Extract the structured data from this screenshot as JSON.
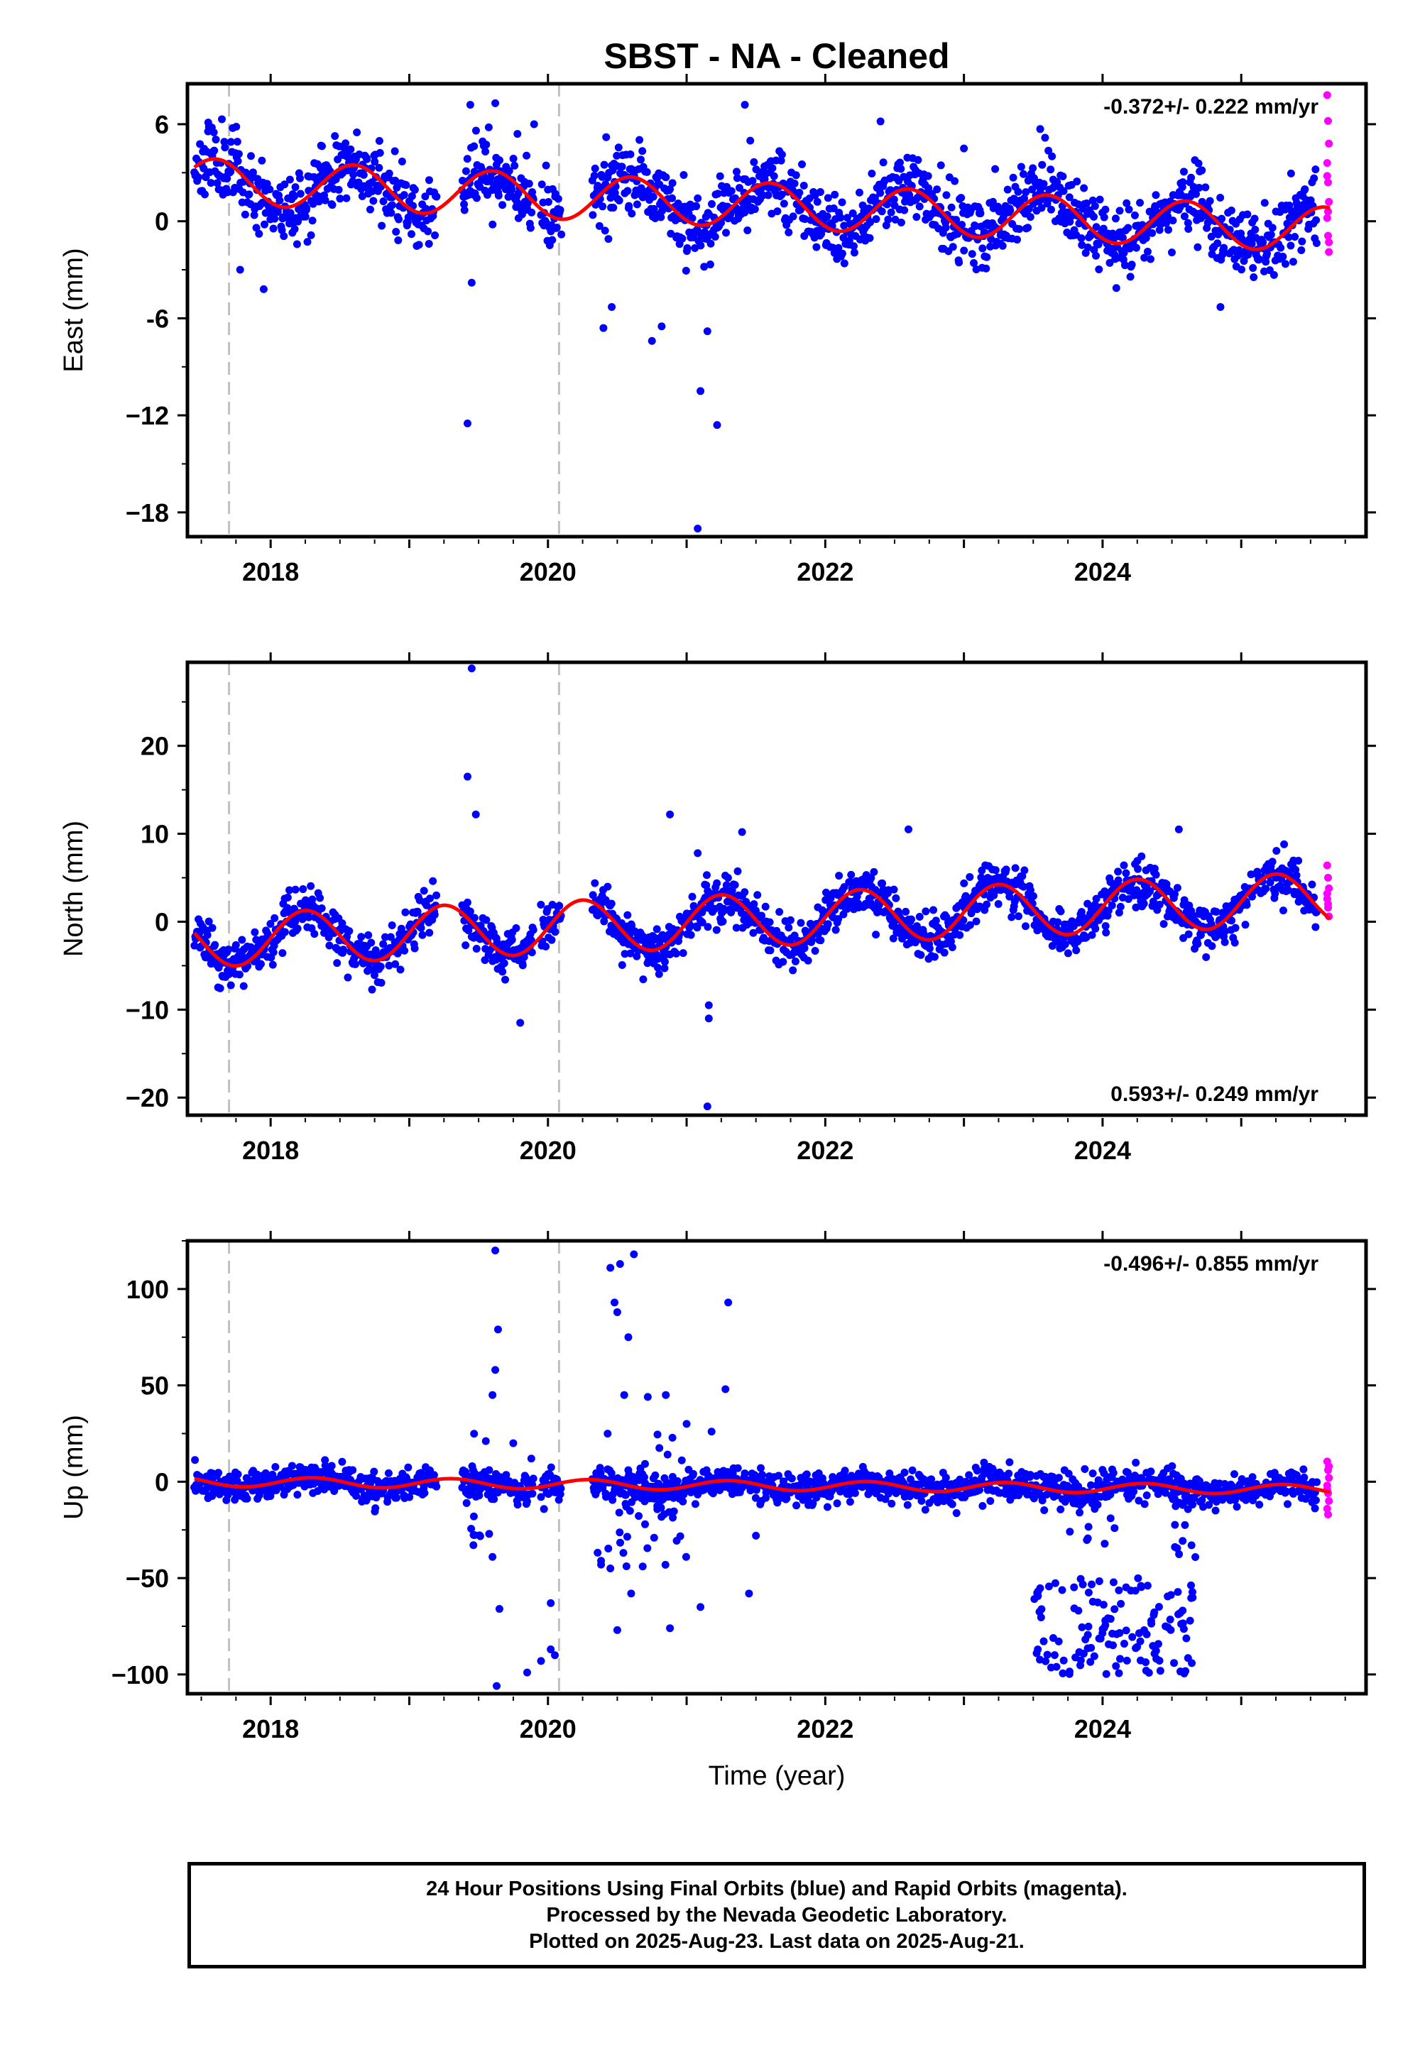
{
  "chart_data": {
    "type": "scatter",
    "title": "SBST  - NA - Cleaned",
    "xlabel": "Time (year)",
    "x_ticks": [
      "2018",
      "2020",
      "2022",
      "2024"
    ],
    "xlim": [
      2017.4,
      2025.9
    ],
    "vertical_reference_lines": [
      2017.7,
      2020.08
    ],
    "colors": {
      "final_orbits": "#0000ff",
      "rapid_orbits": "#ff00ff",
      "fit": "#ff0000",
      "reference_lines": "#c0c0c0"
    },
    "panels": [
      {
        "id": "east",
        "ylabel": "East (mm)",
        "ylim": [
          -19.5,
          8.5
        ],
        "yticks": [
          6,
          0,
          -6,
          -12,
          -18
        ],
        "ytick_labels": [
          "6",
          "0",
          "-6",
          "−12",
          "−18"
        ],
        "rate": "-0.372+/- 0.222 mm/yr",
        "rate_position": "top-right",
        "fit": {
          "offset": 1.0,
          "slope": -0.372,
          "ref_year": 2021.5,
          "amplitude": 1.4,
          "phase": 2018.6
        },
        "seed": 11,
        "spread": 1.1,
        "outliers": [
          {
            "x": 2017.55,
            "y": 6.1
          },
          {
            "x": 2017.78,
            "y": -3.0
          },
          {
            "x": 2017.95,
            "y": -4.2
          },
          {
            "x": 2019.42,
            "y": -12.5
          },
          {
            "x": 2019.45,
            "y": -3.8
          },
          {
            "x": 2019.44,
            "y": 7.2
          },
          {
            "x": 2019.62,
            "y": 7.3
          },
          {
            "x": 2019.78,
            "y": 5.4
          },
          {
            "x": 2019.9,
            "y": 6.0
          },
          {
            "x": 2020.42,
            "y": 5.2
          },
          {
            "x": 2020.4,
            "y": -6.6
          },
          {
            "x": 2020.46,
            "y": -5.3
          },
          {
            "x": 2020.75,
            "y": -7.4
          },
          {
            "x": 2020.82,
            "y": -6.5
          },
          {
            "x": 2021.1,
            "y": -10.5
          },
          {
            "x": 2021.22,
            "y": -12.6
          },
          {
            "x": 2021.08,
            "y": -19.0
          },
          {
            "x": 2021.15,
            "y": -6.8
          },
          {
            "x": 2021.42,
            "y": 7.2
          },
          {
            "x": 2023.0,
            "y": 4.5
          },
          {
            "x": 2023.55,
            "y": 5.7
          },
          {
            "x": 2024.85,
            "y": -5.3
          }
        ],
        "rapid_y": [
          7.8,
          6.2,
          4.8,
          3.6,
          2.4,
          1.2,
          0.2,
          -0.9,
          -1.9,
          2.8,
          0.6,
          -1.3
        ]
      },
      {
        "id": "north",
        "ylabel": "North (mm)",
        "ylim": [
          -22,
          29.5
        ],
        "yticks": [
          20,
          10,
          0,
          -10,
          -20
        ],
        "ytick_labels": [
          "20",
          "10",
          "0",
          "−10",
          "−20"
        ],
        "rate": "0.593+/- 0.249 mm/yr",
        "rate_position": "bottom-right",
        "fit": {
          "offset": 0.2,
          "slope": 0.593,
          "ref_year": 2021.5,
          "amplitude": 3.0,
          "phase": 2018.25
        },
        "seed": 23,
        "spread": 1.3,
        "outliers": [
          {
            "x": 2019.45,
            "y": 28.8
          },
          {
            "x": 2019.42,
            "y": 16.5
          },
          {
            "x": 2019.48,
            "y": 12.2
          },
          {
            "x": 2019.8,
            "y": -11.5
          },
          {
            "x": 2020.88,
            "y": 12.2
          },
          {
            "x": 2021.08,
            "y": 7.8
          },
          {
            "x": 2021.16,
            "y": -9.5
          },
          {
            "x": 2021.16,
            "y": -11.0
          },
          {
            "x": 2021.15,
            "y": -21.0
          },
          {
            "x": 2021.4,
            "y": 10.2
          },
          {
            "x": 2022.6,
            "y": 10.5
          },
          {
            "x": 2024.55,
            "y": 10.5
          }
        ],
        "rapid_y": [
          6.4,
          5.0,
          3.8,
          2.6,
          1.6,
          0.6,
          3.2,
          2.0
        ]
      },
      {
        "id": "up",
        "ylabel": "Up (mm)",
        "ylim": [
          -110,
          125
        ],
        "yticks": [
          100,
          50,
          0,
          -50,
          -100
        ],
        "ytick_labels": [
          "100",
          "50",
          "0",
          "−50",
          "−100"
        ],
        "rate": "-0.496+/- 0.855 mm/yr",
        "rate_position": "top-right",
        "fit": {
          "offset": -2.0,
          "slope": -0.496,
          "ref_year": 2021.5,
          "amplitude": 2.5,
          "phase": 2018.3
        },
        "seed": 37,
        "spread": 4.0,
        "outliers": [
          {
            "x": 2019.62,
            "y": 120
          },
          {
            "x": 2019.64,
            "y": 79
          },
          {
            "x": 2019.62,
            "y": 58
          },
          {
            "x": 2019.6,
            "y": 45
          },
          {
            "x": 2019.6,
            "y": -39
          },
          {
            "x": 2019.65,
            "y": -66
          },
          {
            "x": 2019.63,
            "y": -106
          },
          {
            "x": 2019.85,
            "y": -99
          },
          {
            "x": 2019.95,
            "y": -93
          },
          {
            "x": 2020.02,
            "y": -87
          },
          {
            "x": 2020.05,
            "y": -90
          },
          {
            "x": 2020.02,
            "y": -63
          },
          {
            "x": 2020.45,
            "y": 111
          },
          {
            "x": 2020.52,
            "y": 113
          },
          {
            "x": 2020.62,
            "y": 118
          },
          {
            "x": 2020.48,
            "y": 93
          },
          {
            "x": 2020.5,
            "y": 88
          },
          {
            "x": 2020.58,
            "y": 75
          },
          {
            "x": 2020.55,
            "y": 45
          },
          {
            "x": 2020.72,
            "y": 44
          },
          {
            "x": 2020.85,
            "y": 45
          },
          {
            "x": 2020.45,
            "y": -45
          },
          {
            "x": 2020.5,
            "y": -77
          },
          {
            "x": 2020.6,
            "y": -58
          },
          {
            "x": 2020.88,
            "y": -76
          },
          {
            "x": 2021.1,
            "y": -65
          },
          {
            "x": 2021.18,
            "y": 26
          },
          {
            "x": 2021.3,
            "y": 93
          },
          {
            "x": 2021.28,
            "y": 48
          },
          {
            "x": 2021.45,
            "y": -58
          },
          {
            "x": 2021.5,
            "y": -28
          },
          {
            "x": 2019.75,
            "y": 20
          },
          {
            "x": 2019.88,
            "y": 12
          },
          {
            "x": 2021.0,
            "y": 30
          }
        ],
        "clusters": [
          {
            "x0": 2023.5,
            "x1": 2024.65,
            "y0": -100,
            "y1": -50,
            "count": 130,
            "seed": 51
          },
          {
            "x0": 2023.75,
            "x1": 2024.1,
            "y0": -40,
            "y1": -12,
            "count": 8,
            "seed": 52
          },
          {
            "x0": 2024.5,
            "x1": 2024.7,
            "y0": -40,
            "y1": -12,
            "count": 8,
            "seed": 53
          },
          {
            "x0": 2019.4,
            "x1": 2019.58,
            "y0": -35,
            "y1": 25,
            "count": 18,
            "seed": 54
          },
          {
            "x0": 2020.35,
            "x1": 2021.0,
            "y0": -45,
            "y1": 25,
            "count": 45,
            "seed": 55
          }
        ],
        "rapid_y": [
          10.5,
          6.0,
          2.0,
          -2.0,
          -6.0,
          -10.0,
          -14.0,
          -17.0,
          8.0,
          -4.0
        ]
      }
    ]
  },
  "footer": {
    "line1": "24 Hour Positions Using Final Orbits (blue) and Rapid Orbits (magenta).",
    "line2": "Processed by the Nevada Geodetic Laboratory.",
    "line3": "Plotted on 2025-Aug-23. Last data on 2025-Aug-21."
  }
}
